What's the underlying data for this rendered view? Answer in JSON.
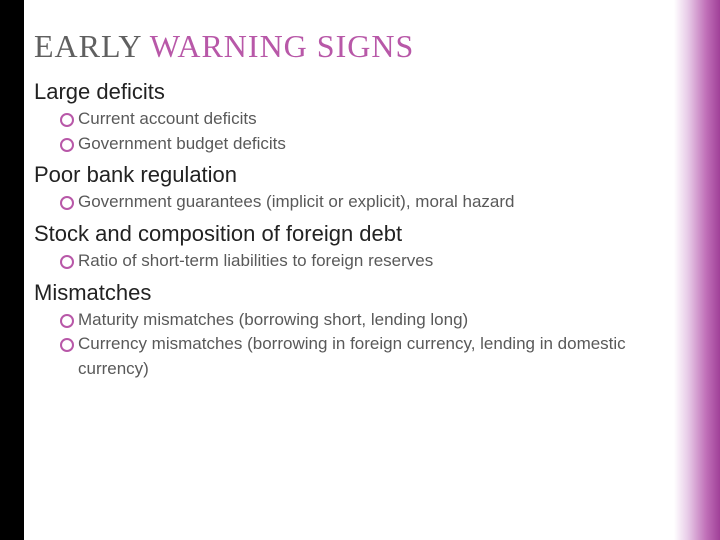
{
  "title_part1": "EARLY ",
  "title_part2": "WARNING SIGNS",
  "sections": [
    {
      "heading": "Large deficits",
      "items": [
        "Current account deficits",
        "Government budget deficits"
      ]
    },
    {
      "heading": "Poor bank regulation",
      "items": [
        "Government guarantees (implicit or explicit), moral hazard"
      ]
    },
    {
      "heading": "Stock and composition of foreign debt",
      "items": [
        "Ratio of short-term liabilities to foreign reserves"
      ]
    },
    {
      "heading": "Mismatches",
      "items": [
        "Maturity mismatches (borrowing short, lending long)",
        "Currency mismatches (borrowing in foreign currency, lending in domestic currency)"
      ]
    }
  ],
  "colors": {
    "left_bar": "#000000",
    "accent": "#b858a8",
    "heading_gray": "#606060",
    "body_text": "#595959",
    "section_text": "#222222"
  }
}
